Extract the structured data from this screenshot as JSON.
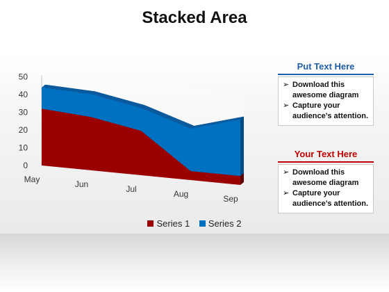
{
  "title": "Stacked Area",
  "chart_data": {
    "type": "area",
    "stacked": true,
    "categories": [
      "May",
      "Jun",
      "Jul",
      "Aug",
      "Sep"
    ],
    "series": [
      {
        "name": "Series 1",
        "color": "#9b0000",
        "values": [
          32,
          30,
          25,
          5,
          5
        ]
      },
      {
        "name": "Series 2",
        "color": "#0070c0",
        "values": [
          12,
          13,
          13,
          24,
          32
        ]
      }
    ],
    "ylim": [
      0,
      50
    ],
    "yticks": [
      "0",
      "10",
      "20",
      "30",
      "40",
      "50"
    ],
    "legend_position": "bottom"
  },
  "panels": [
    {
      "heading": "Put Text Here",
      "color": "#1f5faa",
      "bullets": [
        "Download this awesome diagram",
        "Capture your audience’s attention."
      ]
    },
    {
      "heading": "Your  Text Here",
      "color": "#c00000",
      "bullets": [
        "Download this awesome diagram",
        "Capture your audience’s attention."
      ]
    }
  ]
}
